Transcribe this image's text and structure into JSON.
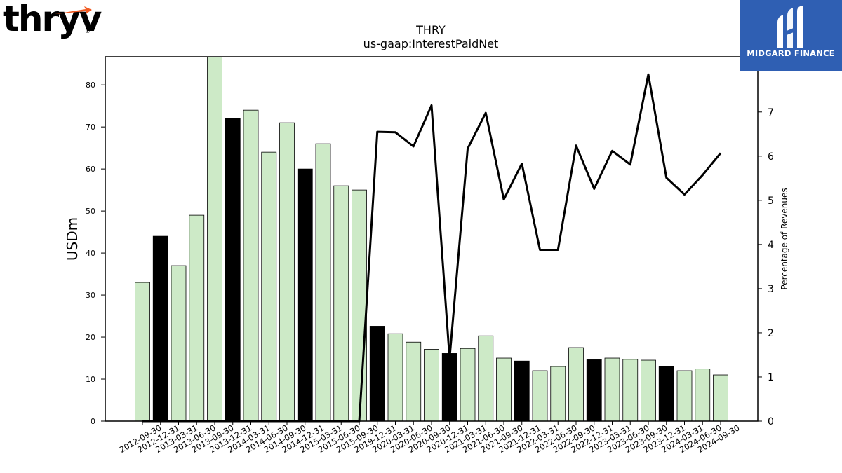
{
  "chart_data": {
    "type": "bar",
    "title": "THRY",
    "subtitle": "us-gaap:InterestPaidNet",
    "ylabel": "USDm",
    "y2label": "Percentage of Revenues",
    "ylim": [
      0,
      86.7
    ],
    "y2lim": [
      0,
      8.25
    ],
    "yticks": [
      0,
      10,
      20,
      30,
      40,
      50,
      60,
      70,
      80
    ],
    "y2ticks": [
      0,
      1,
      2,
      3,
      4,
      5,
      6,
      7,
      8
    ],
    "categories": [
      "2012-09-30",
      "2012-12-31",
      "2013-03-31",
      "2013-06-30",
      "2013-09-30",
      "2013-12-31",
      "2014-03-31",
      "2014-06-30",
      "2014-09-30",
      "2014-12-31",
      "2015-03-31",
      "2015-06-30",
      "2015-09-30",
      "2019-12-31",
      "2020-03-31",
      "2020-06-30",
      "2020-09-30",
      "2020-12-31",
      "2021-03-31",
      "2021-06-30",
      "2021-09-30",
      "2021-12-31",
      "2022-03-31",
      "2022-06-30",
      "2022-09-30",
      "2022-12-31",
      "2023-03-31",
      "2023-06-30",
      "2023-09-30",
      "2023-12-31",
      "2024-03-31",
      "2024-06-30",
      "2024-09-30"
    ],
    "series": [
      {
        "type": "bar",
        "axis": "left",
        "values": [
          33,
          44,
          37,
          49,
          87,
          72,
          74,
          64,
          71,
          60,
          66,
          56,
          55,
          22.6,
          20.8,
          18.8,
          17.1,
          16.1,
          17.3,
          20.3,
          15,
          14.3,
          12,
          13,
          17.5,
          14.6,
          15,
          14.7,
          14.5,
          13,
          12,
          12.4,
          11
        ],
        "colors": {
          "quarter": "#cdeac7",
          "year_end": "#000000"
        },
        "year_end": [
          false,
          true,
          false,
          false,
          false,
          true,
          false,
          false,
          false,
          true,
          false,
          false,
          false,
          true,
          false,
          false,
          false,
          true,
          false,
          false,
          false,
          true,
          false,
          false,
          false,
          true,
          false,
          false,
          false,
          true,
          false,
          false,
          false
        ]
      },
      {
        "type": "line",
        "axis": "right",
        "color": "#000000",
        "values": [
          0,
          0,
          0,
          0,
          0,
          0,
          0,
          0,
          0,
          0,
          0,
          0,
          0,
          6.55,
          6.54,
          6.22,
          7.15,
          1.42,
          6.17,
          6.98,
          5.02,
          5.83,
          3.88,
          3.88,
          6.24,
          5.26,
          6.12,
          5.81,
          7.85,
          5.51,
          5.13,
          5.57,
          6.07
        ]
      }
    ],
    "legend": "none",
    "grid": false
  },
  "branding": {
    "left_logo": "thryv",
    "left_logo_mark": "®",
    "right_logo_name": "MIDGARD FINANCE",
    "right_logo_icon": "midgard-mark-icon",
    "accent": "#f15a22",
    "right_bg": "#2f5fb3"
  }
}
